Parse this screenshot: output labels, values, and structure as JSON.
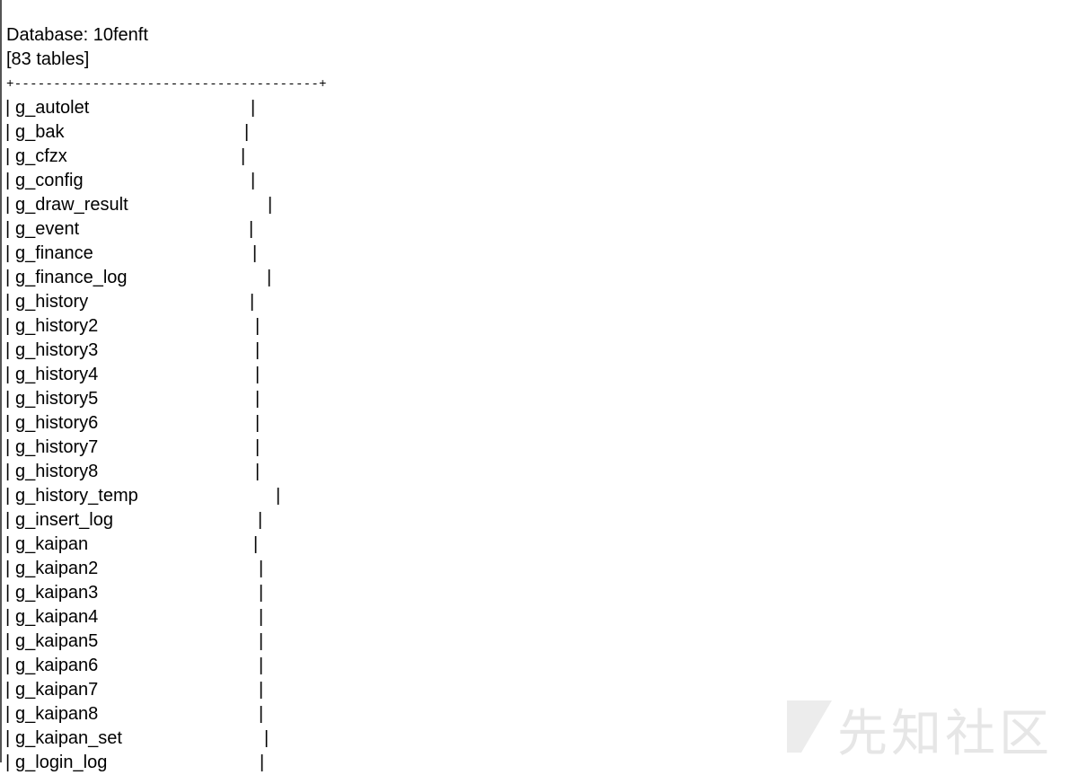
{
  "header": {
    "database": "Database: 10fenft",
    "count": "[83 tables]"
  },
  "table": {
    "border": "+---------------------------------------+",
    "pipe": "|",
    "rows": [
      "g_autolet",
      "g_bak",
      "g_cfzx",
      "g_config",
      "g_draw_result",
      "g_event",
      "g_finance",
      "g_finance_log",
      "g_history",
      "g_history2",
      "g_history3",
      "g_history4",
      "g_history5",
      "g_history6",
      "g_history7",
      "g_history8",
      "g_history_temp",
      "g_insert_log",
      "g_kaipan",
      "g_kaipan2",
      "g_kaipan3",
      "g_kaipan4",
      "g_kaipan5",
      "g_kaipan6",
      "g_kaipan7",
      "g_kaipan8",
      "g_kaipan_set",
      "g_login_log"
    ]
  },
  "watermark": "先知社区"
}
